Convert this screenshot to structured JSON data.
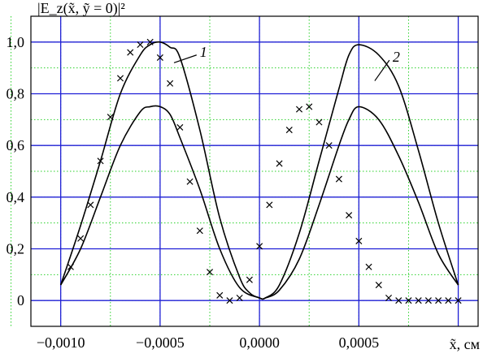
{
  "chart_data": {
    "type": "line",
    "ylabel": "|E_z(x̃, ỹ = 0)|²",
    "xlabel": "x̃, см",
    "xlim": [
      -0.00115,
      0.0011
    ],
    "ylim": [
      -0.1,
      1.1
    ],
    "grid": true,
    "y_ticks": [
      {
        "value": 0,
        "label": "0"
      },
      {
        "value": 0.2,
        "label": "0,2"
      },
      {
        "value": 0.4,
        "label": "0,4"
      },
      {
        "value": 0.6,
        "label": "0,6"
      },
      {
        "value": 0.8,
        "label": "0,8"
      },
      {
        "value": 1.0,
        "label": "1,0"
      }
    ],
    "x_ticks": [
      {
        "value": -0.001,
        "label": "−0,0010"
      },
      {
        "value": -0.0005,
        "label": "−0,0005"
      },
      {
        "value": 0.0,
        "label": "0,0000"
      },
      {
        "value": 0.0005,
        "label": "0,0005"
      }
    ],
    "series": [
      {
        "name": "1",
        "curves": [
          {
            "x": [
              -0.001,
              -0.0009,
              -0.0008,
              -0.0007,
              -0.0006,
              -0.00055,
              -0.0005,
              -0.00045,
              -0.0004,
              -0.0003,
              -0.0002,
              -0.0001,
              -5e-05,
              0.0,
              3e-05,
              0.0001,
              0.0002,
              0.0003,
              0.0004,
              0.00045,
              0.0005,
              0.0006,
              0.0007,
              0.0008,
              0.0009,
              0.001
            ],
            "y": [
              0.06,
              0.29,
              0.54,
              0.8,
              0.95,
              0.99,
              1.0,
              0.98,
              0.94,
              0.66,
              0.32,
              0.09,
              0.03,
              0.01,
              0.01,
              0.06,
              0.26,
              0.54,
              0.82,
              0.95,
              0.99,
              0.95,
              0.83,
              0.58,
              0.3,
              0.06
            ]
          }
        ]
      },
      {
        "name": "2",
        "curves": [
          {
            "x": [
              -0.001,
              -0.0009,
              -0.0008,
              -0.0007,
              -0.0006,
              -0.00055,
              -0.0005,
              -0.00045,
              -0.0004,
              -0.0003,
              -0.0002,
              -0.0001,
              0.0,
              3e-05,
              0.0001,
              0.0002,
              0.0003,
              0.0004,
              0.00045,
              0.0005,
              0.0006,
              0.0007,
              0.0008,
              0.0009,
              0.001
            ],
            "y": [
              0.06,
              0.2,
              0.4,
              0.6,
              0.73,
              0.75,
              0.75,
              0.72,
              0.63,
              0.43,
              0.2,
              0.05,
              0.01,
              0.01,
              0.04,
              0.16,
              0.37,
              0.6,
              0.7,
              0.75,
              0.7,
              0.56,
              0.38,
              0.18,
              0.06
            ]
          }
        ]
      }
    ],
    "markers": {
      "symbol": "×",
      "x": [
        -0.00095,
        -0.0009,
        -0.00085,
        -0.0008,
        -0.00075,
        -0.0007,
        -0.00065,
        -0.0006,
        -0.00055,
        -0.0005,
        -0.00045,
        -0.0004,
        -0.00035,
        -0.0003,
        -0.00025,
        -0.0002,
        -0.00015,
        -0.0001,
        -5e-05,
        0.0,
        5e-05,
        0.0001,
        0.00015,
        0.0002,
        0.00025,
        0.0003,
        0.00035,
        0.0004,
        0.00045,
        0.0005,
        0.00055,
        0.0006,
        0.00065,
        0.0007,
        0.00075,
        0.0008,
        0.00085,
        0.0009,
        0.00095,
        0.001
      ],
      "y": [
        0.13,
        0.24,
        0.37,
        0.54,
        0.71,
        0.86,
        0.96,
        0.99,
        1.0,
        0.94,
        0.84,
        0.67,
        0.46,
        0.27,
        0.11,
        0.02,
        0.0,
        0.01,
        0.08,
        0.21,
        0.37,
        0.53,
        0.66,
        0.74,
        0.75,
        0.69,
        0.6,
        0.47,
        0.33,
        0.23,
        0.13,
        0.06,
        0.01,
        0.0,
        0.0,
        0.0,
        0.0,
        0.0,
        0.0,
        0.0
      ]
    }
  }
}
